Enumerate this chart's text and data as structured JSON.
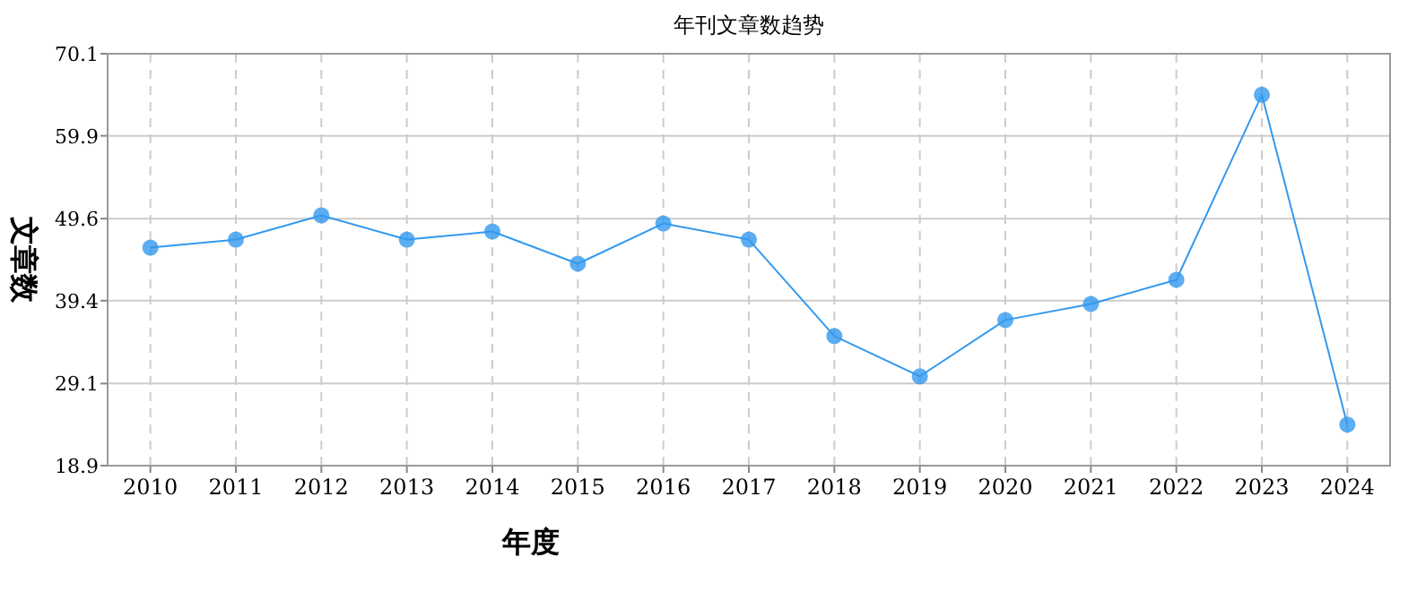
{
  "chart_data": {
    "type": "line",
    "title": "年刊文章数趋势",
    "xlabel": "年度",
    "ylabel": "文章数",
    "categories": [
      "2010",
      "2011",
      "2012",
      "2013",
      "2014",
      "2015",
      "2016",
      "2017",
      "2018",
      "2019",
      "2020",
      "2021",
      "2022",
      "2023",
      "2024"
    ],
    "series": [
      {
        "color": "#3399ee",
        "values": [
          46,
          47,
          50,
          47,
          48,
          44,
          49,
          47,
          35,
          30,
          37,
          39,
          42,
          65,
          24
        ]
      }
    ],
    "ylim": [
      18.9,
      70.1
    ],
    "yticks": [
      18.9,
      29.1,
      39.4,
      49.6,
      59.9,
      70.1
    ],
    "grid": true,
    "marker": "circle",
    "line_style": "solid"
  }
}
